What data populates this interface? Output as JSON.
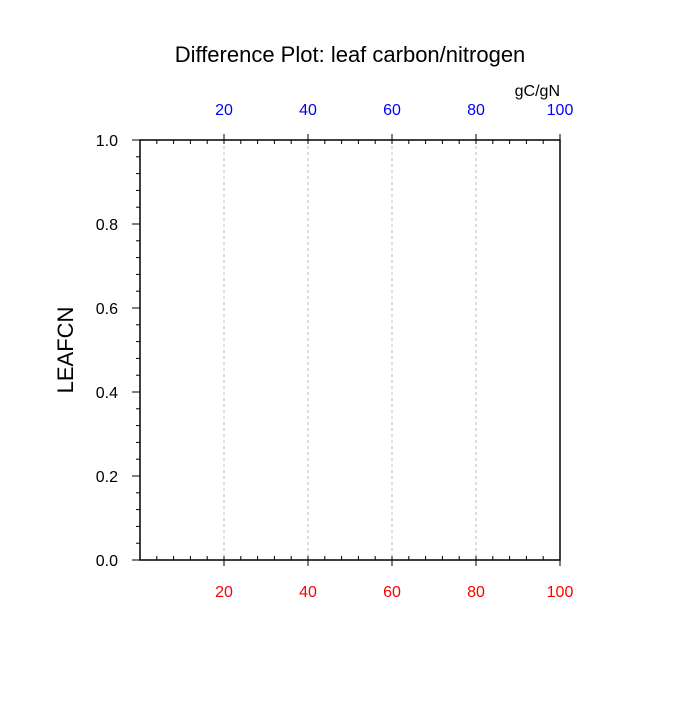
{
  "chart_data": {
    "type": "line",
    "title": "Difference Plot: leaf carbon/nitrogen",
    "ylabel": "LEAFCN",
    "top_axis_units": "gC/gN",
    "xlim": [
      0,
      100
    ],
    "ylim": [
      0.0,
      1.0
    ],
    "x_ticks": [
      20,
      40,
      60,
      80,
      100
    ],
    "x_tick_labels_bottom": [
      "20",
      "40",
      "60",
      "80",
      "100"
    ],
    "x_tick_labels_top": [
      "20",
      "40",
      "60",
      "80",
      "100"
    ],
    "y_ticks": [
      0.0,
      0.2,
      0.4,
      0.6,
      0.8,
      1.0
    ],
    "y_tick_labels": [
      "0.0",
      "0.2",
      "0.4",
      "0.6",
      "0.8",
      "1.0"
    ],
    "x_minor_step": 4,
    "y_minor_step": 0.04,
    "grid": "vertical dashed at major x ticks",
    "series": [],
    "colors": {
      "bottom_axis_labels": "#ff0000",
      "top_axis_labels": "#0000ff",
      "axis": "#000000",
      "grid": "#bbbbbb"
    }
  }
}
